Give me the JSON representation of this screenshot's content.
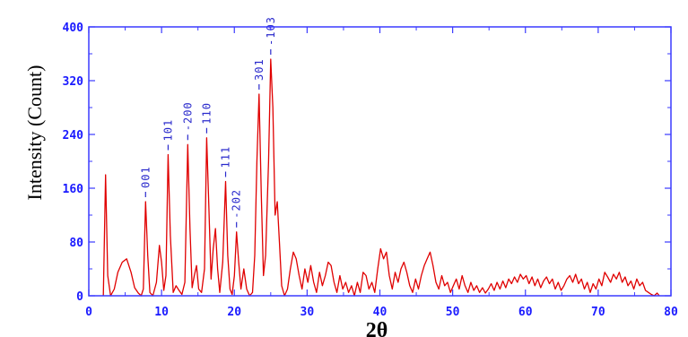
{
  "colors": {
    "axis": "#3a3aff",
    "tick_text": "#1a1aff",
    "series": "#e00000",
    "peak_label": "#2a2acc"
  },
  "chart_data": {
    "type": "line",
    "title": "",
    "xlabel": "2θ",
    "ylabel": "Intensity (Count)",
    "xlim": [
      0,
      80
    ],
    "ylim": [
      0,
      400
    ],
    "x_ticks": [
      0,
      10,
      20,
      30,
      40,
      50,
      60,
      70,
      80
    ],
    "y_ticks": [
      0,
      80,
      160,
      240,
      320,
      400
    ],
    "x_tick_labels": [
      "0",
      "10",
      "20",
      "30",
      "40",
      "50",
      "60",
      "70",
      "80"
    ],
    "y_tick_labels": [
      "0",
      "80",
      "160",
      "240",
      "320",
      "400"
    ],
    "grid": false,
    "legend": "none",
    "peak_annotations": [
      {
        "label": "001",
        "x": 7.8,
        "y": 140
      },
      {
        "label": "101",
        "x": 10.9,
        "y": 210
      },
      {
        "label": "-200",
        "x": 13.6,
        "y": 225
      },
      {
        "label": "110",
        "x": 16.2,
        "y": 235
      },
      {
        "label": "111",
        "x": 18.8,
        "y": 170
      },
      {
        "label": "-202",
        "x": 20.3,
        "y": 95
      },
      {
        "label": "301",
        "x": 23.4,
        "y": 300
      },
      {
        "label": "-103",
        "x": 25.0,
        "y": 352
      }
    ],
    "series": [
      {
        "points": [
          [
            2.0,
            0
          ],
          [
            2.3,
            180
          ],
          [
            2.6,
            30
          ],
          [
            3.0,
            0
          ],
          [
            3.5,
            10
          ],
          [
            4.0,
            35
          ],
          [
            4.6,
            50
          ],
          [
            5.2,
            55
          ],
          [
            5.8,
            35
          ],
          [
            6.3,
            12
          ],
          [
            6.8,
            4
          ],
          [
            7.2,
            0
          ],
          [
            7.5,
            10
          ],
          [
            7.8,
            140
          ],
          [
            8.1,
            60
          ],
          [
            8.4,
            5
          ],
          [
            8.8,
            0
          ],
          [
            9.3,
            20
          ],
          [
            9.7,
            75
          ],
          [
            10.0,
            50
          ],
          [
            10.3,
            8
          ],
          [
            10.6,
            30
          ],
          [
            10.9,
            210
          ],
          [
            11.2,
            90
          ],
          [
            11.6,
            5
          ],
          [
            12.0,
            15
          ],
          [
            12.4,
            8
          ],
          [
            12.8,
            2
          ],
          [
            13.2,
            20
          ],
          [
            13.6,
            225
          ],
          [
            13.9,
            100
          ],
          [
            14.2,
            12
          ],
          [
            14.5,
            30
          ],
          [
            14.8,
            45
          ],
          [
            15.1,
            10
          ],
          [
            15.5,
            5
          ],
          [
            15.9,
            40
          ],
          [
            16.2,
            235
          ],
          [
            16.5,
            130
          ],
          [
            16.8,
            25
          ],
          [
            17.1,
            70
          ],
          [
            17.4,
            100
          ],
          [
            17.7,
            40
          ],
          [
            18.0,
            5
          ],
          [
            18.4,
            50
          ],
          [
            18.8,
            170
          ],
          [
            19.1,
            60
          ],
          [
            19.4,
            10
          ],
          [
            19.7,
            2
          ],
          [
            20.0,
            30
          ],
          [
            20.3,
            95
          ],
          [
            20.6,
            50
          ],
          [
            20.9,
            10
          ],
          [
            21.3,
            40
          ],
          [
            21.7,
            10
          ],
          [
            22.1,
            0
          ],
          [
            22.5,
            5
          ],
          [
            22.8,
            60
          ],
          [
            23.1,
            200
          ],
          [
            23.4,
            300
          ],
          [
            23.7,
            150
          ],
          [
            24.0,
            30
          ],
          [
            24.3,
            60
          ],
          [
            24.7,
            200
          ],
          [
            25.0,
            352
          ],
          [
            25.3,
            280
          ],
          [
            25.6,
            120
          ],
          [
            25.9,
            140
          ],
          [
            26.2,
            80
          ],
          [
            26.5,
            15
          ],
          [
            26.9,
            0
          ],
          [
            27.3,
            10
          ],
          [
            27.7,
            40
          ],
          [
            28.1,
            65
          ],
          [
            28.5,
            55
          ],
          [
            28.9,
            30
          ],
          [
            29.3,
            10
          ],
          [
            29.7,
            40
          ],
          [
            30.1,
            20
          ],
          [
            30.5,
            45
          ],
          [
            30.9,
            20
          ],
          [
            31.3,
            5
          ],
          [
            31.7,
            35
          ],
          [
            32.1,
            15
          ],
          [
            32.5,
            30
          ],
          [
            32.9,
            50
          ],
          [
            33.3,
            45
          ],
          [
            33.7,
            20
          ],
          [
            34.1,
            5
          ],
          [
            34.5,
            30
          ],
          [
            34.9,
            10
          ],
          [
            35.3,
            20
          ],
          [
            35.7,
            5
          ],
          [
            36.1,
            15
          ],
          [
            36.5,
            0
          ],
          [
            36.9,
            20
          ],
          [
            37.3,
            5
          ],
          [
            37.7,
            35
          ],
          [
            38.1,
            30
          ],
          [
            38.5,
            10
          ],
          [
            38.9,
            20
          ],
          [
            39.3,
            5
          ],
          [
            39.7,
            40
          ],
          [
            40.1,
            70
          ],
          [
            40.5,
            55
          ],
          [
            40.9,
            65
          ],
          [
            41.3,
            30
          ],
          [
            41.7,
            10
          ],
          [
            42.1,
            35
          ],
          [
            42.5,
            20
          ],
          [
            42.9,
            40
          ],
          [
            43.3,
            50
          ],
          [
            43.7,
            35
          ],
          [
            44.1,
            15
          ],
          [
            44.5,
            5
          ],
          [
            44.9,
            25
          ],
          [
            45.3,
            10
          ],
          [
            45.7,
            30
          ],
          [
            46.1,
            45
          ],
          [
            46.5,
            55
          ],
          [
            46.9,
            65
          ],
          [
            47.3,
            45
          ],
          [
            47.7,
            20
          ],
          [
            48.1,
            10
          ],
          [
            48.5,
            30
          ],
          [
            48.9,
            15
          ],
          [
            49.3,
            20
          ],
          [
            49.7,
            5
          ],
          [
            50.1,
            15
          ],
          [
            50.5,
            25
          ],
          [
            50.9,
            10
          ],
          [
            51.3,
            30
          ],
          [
            51.7,
            15
          ],
          [
            52.1,
            5
          ],
          [
            52.5,
            20
          ],
          [
            52.9,
            8
          ],
          [
            53.3,
            15
          ],
          [
            53.7,
            5
          ],
          [
            54.1,
            12
          ],
          [
            54.5,
            4
          ],
          [
            54.9,
            10
          ],
          [
            55.3,
            18
          ],
          [
            55.7,
            8
          ],
          [
            56.1,
            20
          ],
          [
            56.5,
            10
          ],
          [
            56.9,
            22
          ],
          [
            57.3,
            12
          ],
          [
            57.7,
            25
          ],
          [
            58.1,
            18
          ],
          [
            58.5,
            28
          ],
          [
            58.9,
            20
          ],
          [
            59.3,
            32
          ],
          [
            59.7,
            25
          ],
          [
            60.1,
            30
          ],
          [
            60.5,
            18
          ],
          [
            60.9,
            28
          ],
          [
            61.3,
            15
          ],
          [
            61.7,
            25
          ],
          [
            62.1,
            12
          ],
          [
            62.5,
            22
          ],
          [
            62.9,
            28
          ],
          [
            63.3,
            18
          ],
          [
            63.7,
            25
          ],
          [
            64.1,
            10
          ],
          [
            64.5,
            20
          ],
          [
            64.9,
            8
          ],
          [
            65.3,
            15
          ],
          [
            65.7,
            25
          ],
          [
            66.1,
            30
          ],
          [
            66.5,
            20
          ],
          [
            66.9,
            32
          ],
          [
            67.3,
            18
          ],
          [
            67.7,
            25
          ],
          [
            68.1,
            10
          ],
          [
            68.5,
            20
          ],
          [
            68.9,
            5
          ],
          [
            69.3,
            18
          ],
          [
            69.7,
            10
          ],
          [
            70.1,
            25
          ],
          [
            70.5,
            15
          ],
          [
            70.9,
            35
          ],
          [
            71.3,
            28
          ],
          [
            71.7,
            20
          ],
          [
            72.1,
            32
          ],
          [
            72.5,
            25
          ],
          [
            72.9,
            35
          ],
          [
            73.3,
            20
          ],
          [
            73.7,
            28
          ],
          [
            74.1,
            15
          ],
          [
            74.5,
            22
          ],
          [
            74.9,
            10
          ],
          [
            75.3,
            25
          ],
          [
            75.7,
            15
          ],
          [
            76.1,
            20
          ],
          [
            76.5,
            8
          ],
          [
            76.9,
            5
          ],
          [
            77.3,
            2
          ],
          [
            77.7,
            0
          ],
          [
            78.1,
            4
          ],
          [
            78.4,
            0
          ]
        ]
      }
    ]
  }
}
